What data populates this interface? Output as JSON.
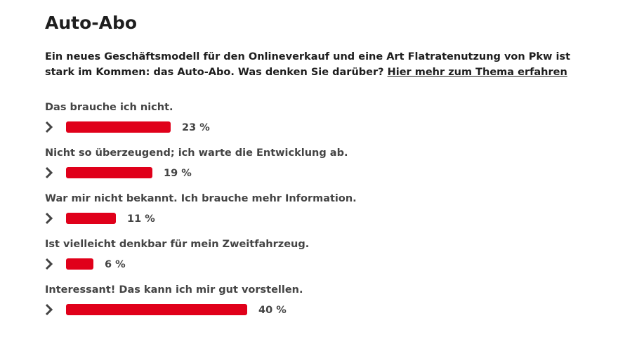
{
  "poll": {
    "title": "Auto-Abo",
    "intro_text": "Ein neues Geschäftsmodell für den Onlineverkauf und eine Art Flatratenutzung von Pkw ist stark im Kommen: das Auto-Abo. Was denken Sie darüber? ",
    "intro_link": "Hier mehr zum Thema erfahren",
    "bar_color": "#e0001a",
    "chevron_icon": "chevron-right-icon",
    "options": [
      {
        "label": "Das brauche ich nicht.",
        "percent": 23,
        "percent_label": "23 %"
      },
      {
        "label": "Nicht so überzeugend; ich warte die Entwicklung ab.",
        "percent": 19,
        "percent_label": "19 %"
      },
      {
        "label": "War mir nicht bekannt. Ich brauche mehr Information.",
        "percent": 11,
        "percent_label": "11 %"
      },
      {
        "label": "Ist vielleicht denkbar für mein Zweitfahrzeug.",
        "percent": 6,
        "percent_label": "6 %"
      },
      {
        "label": "Interessant! Das kann ich mir gut vorstellen.",
        "percent": 40,
        "percent_label": "40 %"
      }
    ]
  }
}
